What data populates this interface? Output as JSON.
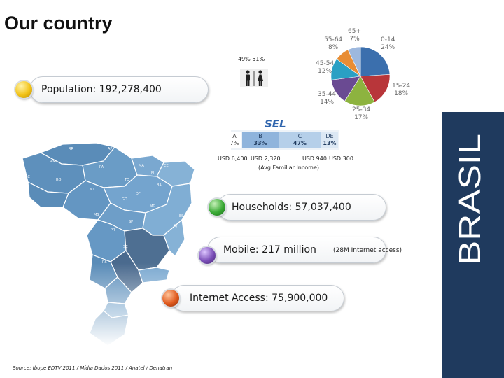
{
  "slide": {
    "title": "Our country",
    "side_label": "BRASIL"
  },
  "gender": {
    "male_pct": "49%",
    "female_pct": "51%"
  },
  "population": {
    "label": "Population:",
    "value": "192,278,400"
  },
  "age_pie": {
    "slices": [
      {
        "label": "0-14",
        "value": "24%",
        "percent": 24,
        "color": "#3b6fad"
      },
      {
        "label": "15-24",
        "value": "18%",
        "percent": 18,
        "color": "#b8363a"
      },
      {
        "label": "25-34",
        "value": "17%",
        "percent": 17,
        "color": "#8db33f"
      },
      {
        "label": "35-44",
        "value": "14%",
        "percent": 14,
        "color": "#6a4a92"
      },
      {
        "label": "45-54",
        "value": "12%",
        "percent": 12,
        "color": "#2aa0c4"
      },
      {
        "label": "55-64",
        "value": "8%",
        "percent": 8,
        "color": "#e88d35"
      },
      {
        "label": "65+",
        "value": "7%",
        "percent": 7,
        "color": "#9db8de"
      }
    ]
  },
  "sel": {
    "title": "SEL",
    "segments": [
      {
        "class": "A",
        "pct": "7%",
        "income": "USD 6,400",
        "color": "#ffffff",
        "text_color": "#333333"
      },
      {
        "class": "B",
        "pct": "33%",
        "income": "USD 2,320",
        "color": "#8fb4dc",
        "text_color": "#1f3a5e"
      },
      {
        "class": "C",
        "pct": "47%",
        "income": "USD 940",
        "color": "#b5cfe9",
        "text_color": "#1f3a5e"
      },
      {
        "class": "DE",
        "pct": "13%",
        "income": "USD 300",
        "color": "#dce8f4",
        "text_color": "#1f3a5e"
      }
    ],
    "income_note": "(Avg Familiar Income)"
  },
  "households": {
    "label": "Households:",
    "value": "57,037,400"
  },
  "mobile": {
    "label": "Mobile:",
    "value": "217 million",
    "note": "(28M Internet access)"
  },
  "internet": {
    "label": "Internet Access:",
    "value": "75,900,000"
  },
  "map_states": [
    "RR",
    "AP",
    "AM",
    "PA",
    "MA",
    "CE",
    "RN",
    "PB",
    "PE",
    "AL",
    "SE",
    "PI",
    "AC",
    "RO",
    "TO",
    "BA",
    "MT",
    "GO",
    "DF",
    "MG",
    "ES",
    "MS",
    "SP",
    "RJ",
    "PR",
    "SC",
    "RS"
  ],
  "source": "Source: Ibope EDTV 2011 / Mídia Dados 2011 / Anatel / Denatran",
  "colors": {
    "green": "#3aaa35",
    "yellow": "#f2c318",
    "purple": "#7b4fb8",
    "orange": "#e05a1e",
    "navy": "#1f3a5e"
  }
}
